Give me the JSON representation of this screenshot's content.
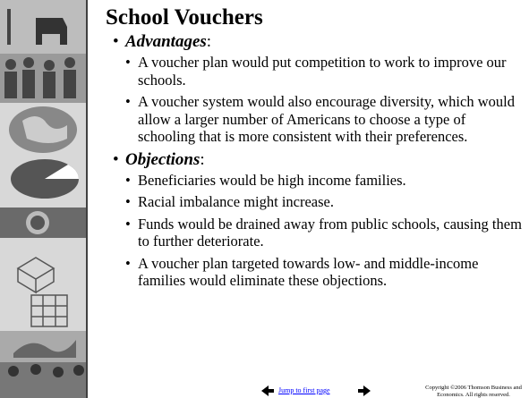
{
  "title": "School Vouchers",
  "sections": [
    {
      "heading": "Advantages",
      "heading_suffix": ":",
      "items": [
        "A voucher plan would put competition to work to improve our schools.",
        "A voucher system would also encourage diversity, which would allow a larger number of Americans to choose a type of schooling that is more consistent with their preferences."
      ]
    },
    {
      "heading": "Objections",
      "heading_suffix": ":",
      "items": [
        "Beneficiaries would be high income families.",
        "Racial imbalance might increase.",
        "Funds would be drained away from public schools, causing them to further deteriorate.",
        "A voucher plan targeted towards low- and middle-income families would eliminate these objections."
      ]
    }
  ],
  "footer": {
    "link": "Jump to first page",
    "copyright": "Copyright ©2006  Thomson Business and Economics. All rights reserved."
  }
}
